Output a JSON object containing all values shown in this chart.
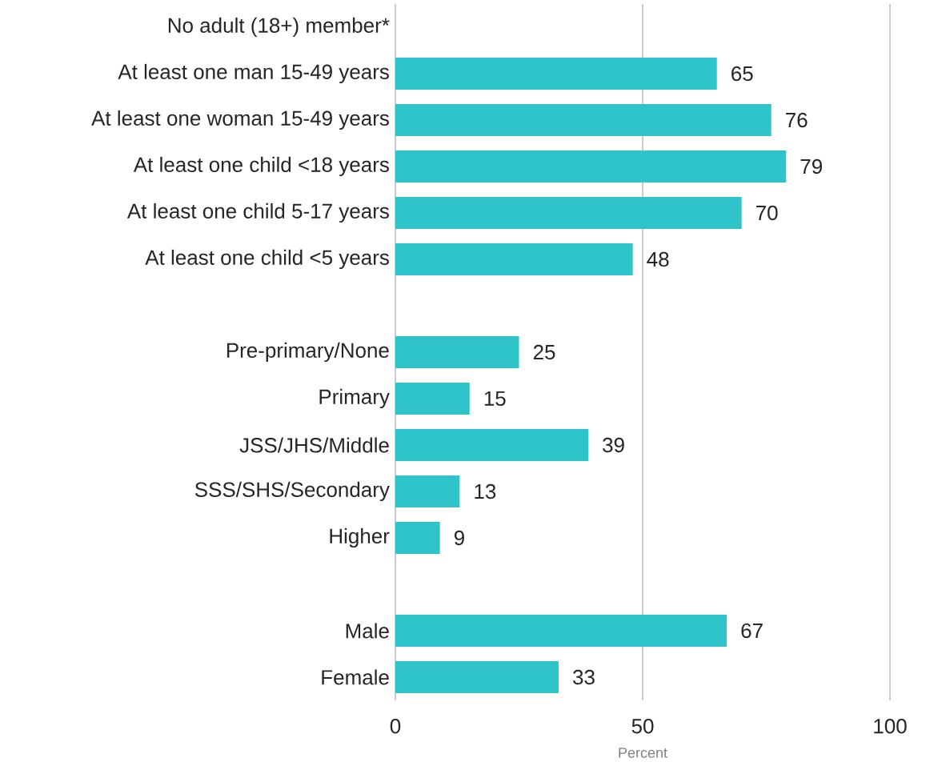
{
  "chart_data": {
    "type": "bar",
    "orientation": "horizontal",
    "categories": [
      "No adult (18+) member*",
      "At least one man 15-49 years",
      "At least one woman 15-49 years",
      "At least one child <18 years",
      "At least one child 5-17 years",
      "At least one child <5 years",
      null,
      "Pre-primary/None",
      "Primary",
      "JSS/JHS/Middle",
      "SSS/SHS/Secondary",
      "Higher",
      null,
      "Male",
      "Female"
    ],
    "values": [
      null,
      65,
      76,
      79,
      70,
      48,
      null,
      25,
      15,
      39,
      13,
      9,
      null,
      67,
      33
    ],
    "color": "#2ec4c9",
    "xlim": [
      0,
      100
    ],
    "xticks": [
      0,
      50,
      100
    ],
    "xlabel": "Percent",
    "grid": "x",
    "data_labels": true
  }
}
